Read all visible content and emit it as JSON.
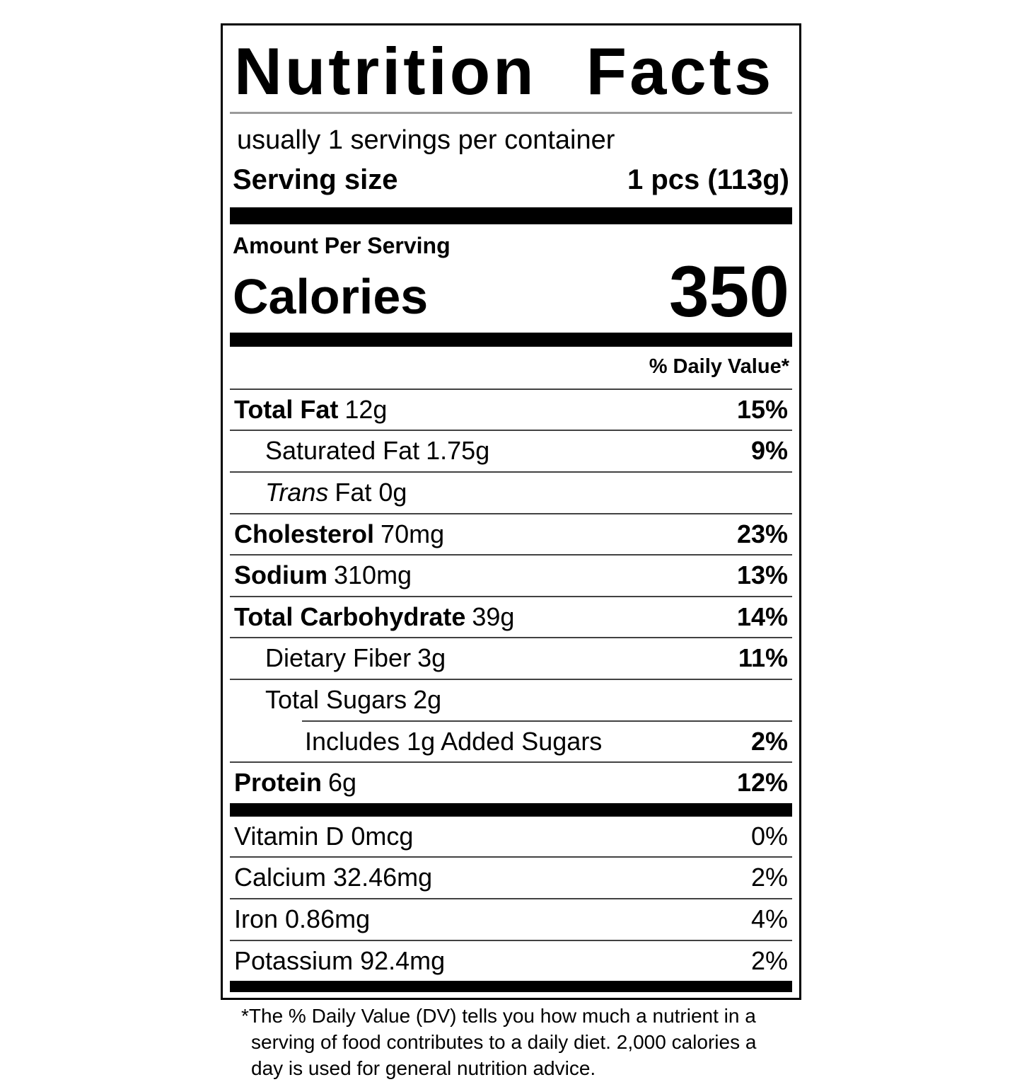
{
  "nutrition_label": {
    "title": "Nutrition Facts",
    "servings_per_container": "usually 1 servings per container",
    "serving_size": {
      "label": "Serving size",
      "value": "1 pcs (113g)"
    },
    "amount_per_serving_label": "Amount Per Serving",
    "calories": {
      "label": "Calories",
      "value": "350"
    },
    "daily_value_header": "% Daily Value*",
    "nutrient_rows": [
      {
        "name": "Total Fat",
        "amount": "12g",
        "dv": "15%"
      },
      {
        "name": "Saturated Fat",
        "amount": "1.75g",
        "dv": "9%"
      },
      {
        "name": "Trans",
        "amount": "Fat 0g",
        "dv": ""
      },
      {
        "name": "Cholesterol",
        "amount": "70mg",
        "dv": "23%"
      },
      {
        "name": "Sodium",
        "amount": "310mg",
        "dv": "13%"
      },
      {
        "name": "Total Carbohydrate",
        "amount": "39g",
        "dv": "14%"
      },
      {
        "name": "Dietary Fiber",
        "amount": "3g",
        "dv": "11%"
      },
      {
        "name": "Total Sugars",
        "amount": "2g",
        "dv": ""
      },
      {
        "name": "Includes 1g Added Sugars",
        "amount": "",
        "dv": "2%"
      },
      {
        "name": "Protein",
        "amount": "6g",
        "dv": "12%"
      }
    ],
    "micronutrient_rows": [
      {
        "name": "Vitamin D 0mcg",
        "dv": "0%"
      },
      {
        "name": "Calcium 32.46mg",
        "dv": "2%"
      },
      {
        "name": "Iron 0.86mg",
        "dv": "4%"
      },
      {
        "name": "Potassium 92.4mg",
        "dv": "2%"
      }
    ],
    "footnote": "*The % Daily Value (DV) tells you how much a nutrient in a serving of food contributes to a daily diet. 2,000 calories a day is used for general nutrition advice.",
    "colors": {
      "text": "#000000",
      "background": "#ffffff",
      "hairline": "#424242",
      "title_rule": "#9a9a9a"
    }
  }
}
